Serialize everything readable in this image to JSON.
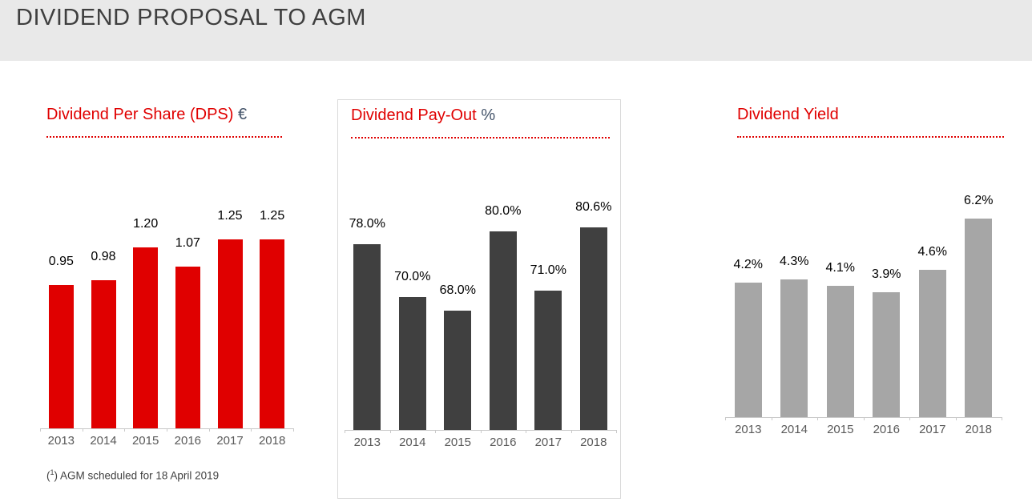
{
  "header": {
    "title": "DIVIDEND PROPOSAL TO AGM"
  },
  "footnote": {
    "marker": "1",
    "text": "AGM scheduled for 18 April 2019"
  },
  "colors": {
    "accent_red": "#e00000",
    "bar_dark": "#404040",
    "bar_light": "#a6a6a6",
    "header_bg": "#e9e9e9",
    "axis_gray": "#c9c9c9"
  },
  "chart_data": [
    {
      "type": "bar",
      "title": "Dividend Per Share (DPS)",
      "title_suffix": "€",
      "categories": [
        "2013",
        "2014",
        "2015",
        "2016",
        "2017",
        "2018"
      ],
      "values": [
        0.95,
        0.98,
        1.2,
        1.07,
        1.25,
        1.25
      ],
      "value_labels": [
        "0.95",
        "0.98",
        "1.20",
        "1.07",
        "1.25",
        "1.25"
      ],
      "ylim": [
        0,
        1.3
      ],
      "bar_color": "#e00000",
      "grid": false,
      "legend": "none",
      "xlabel": "",
      "ylabel": ""
    },
    {
      "type": "bar",
      "title": "Dividend Pay-Out",
      "title_suffix": "%",
      "categories": [
        "2013",
        "2014",
        "2015",
        "2016",
        "2017",
        "2018"
      ],
      "values": [
        78.0,
        70.0,
        68.0,
        80.0,
        71.0,
        80.6
      ],
      "value_labels": [
        "78.0%",
        "70.0%",
        "68.0%",
        "80.0%",
        "71.0%",
        "80.6%"
      ],
      "ylim": [
        50,
        82
      ],
      "bar_color": "#404040",
      "grid": false,
      "legend": "none",
      "xlabel": "",
      "ylabel": ""
    },
    {
      "type": "bar",
      "title": "Dividend Yield",
      "title_suffix": "",
      "categories": [
        "2013",
        "2014",
        "2015",
        "2016",
        "2017",
        "2018"
      ],
      "values": [
        4.2,
        4.3,
        4.1,
        3.9,
        4.6,
        6.2
      ],
      "value_labels": [
        "4.2%",
        "4.3%",
        "4.1%",
        "3.9%",
        "4.6%",
        "6.2%"
      ],
      "ylim": [
        0,
        6.4
      ],
      "bar_color": "#a6a6a6",
      "grid": false,
      "legend": "none",
      "xlabel": "",
      "ylabel": ""
    }
  ]
}
